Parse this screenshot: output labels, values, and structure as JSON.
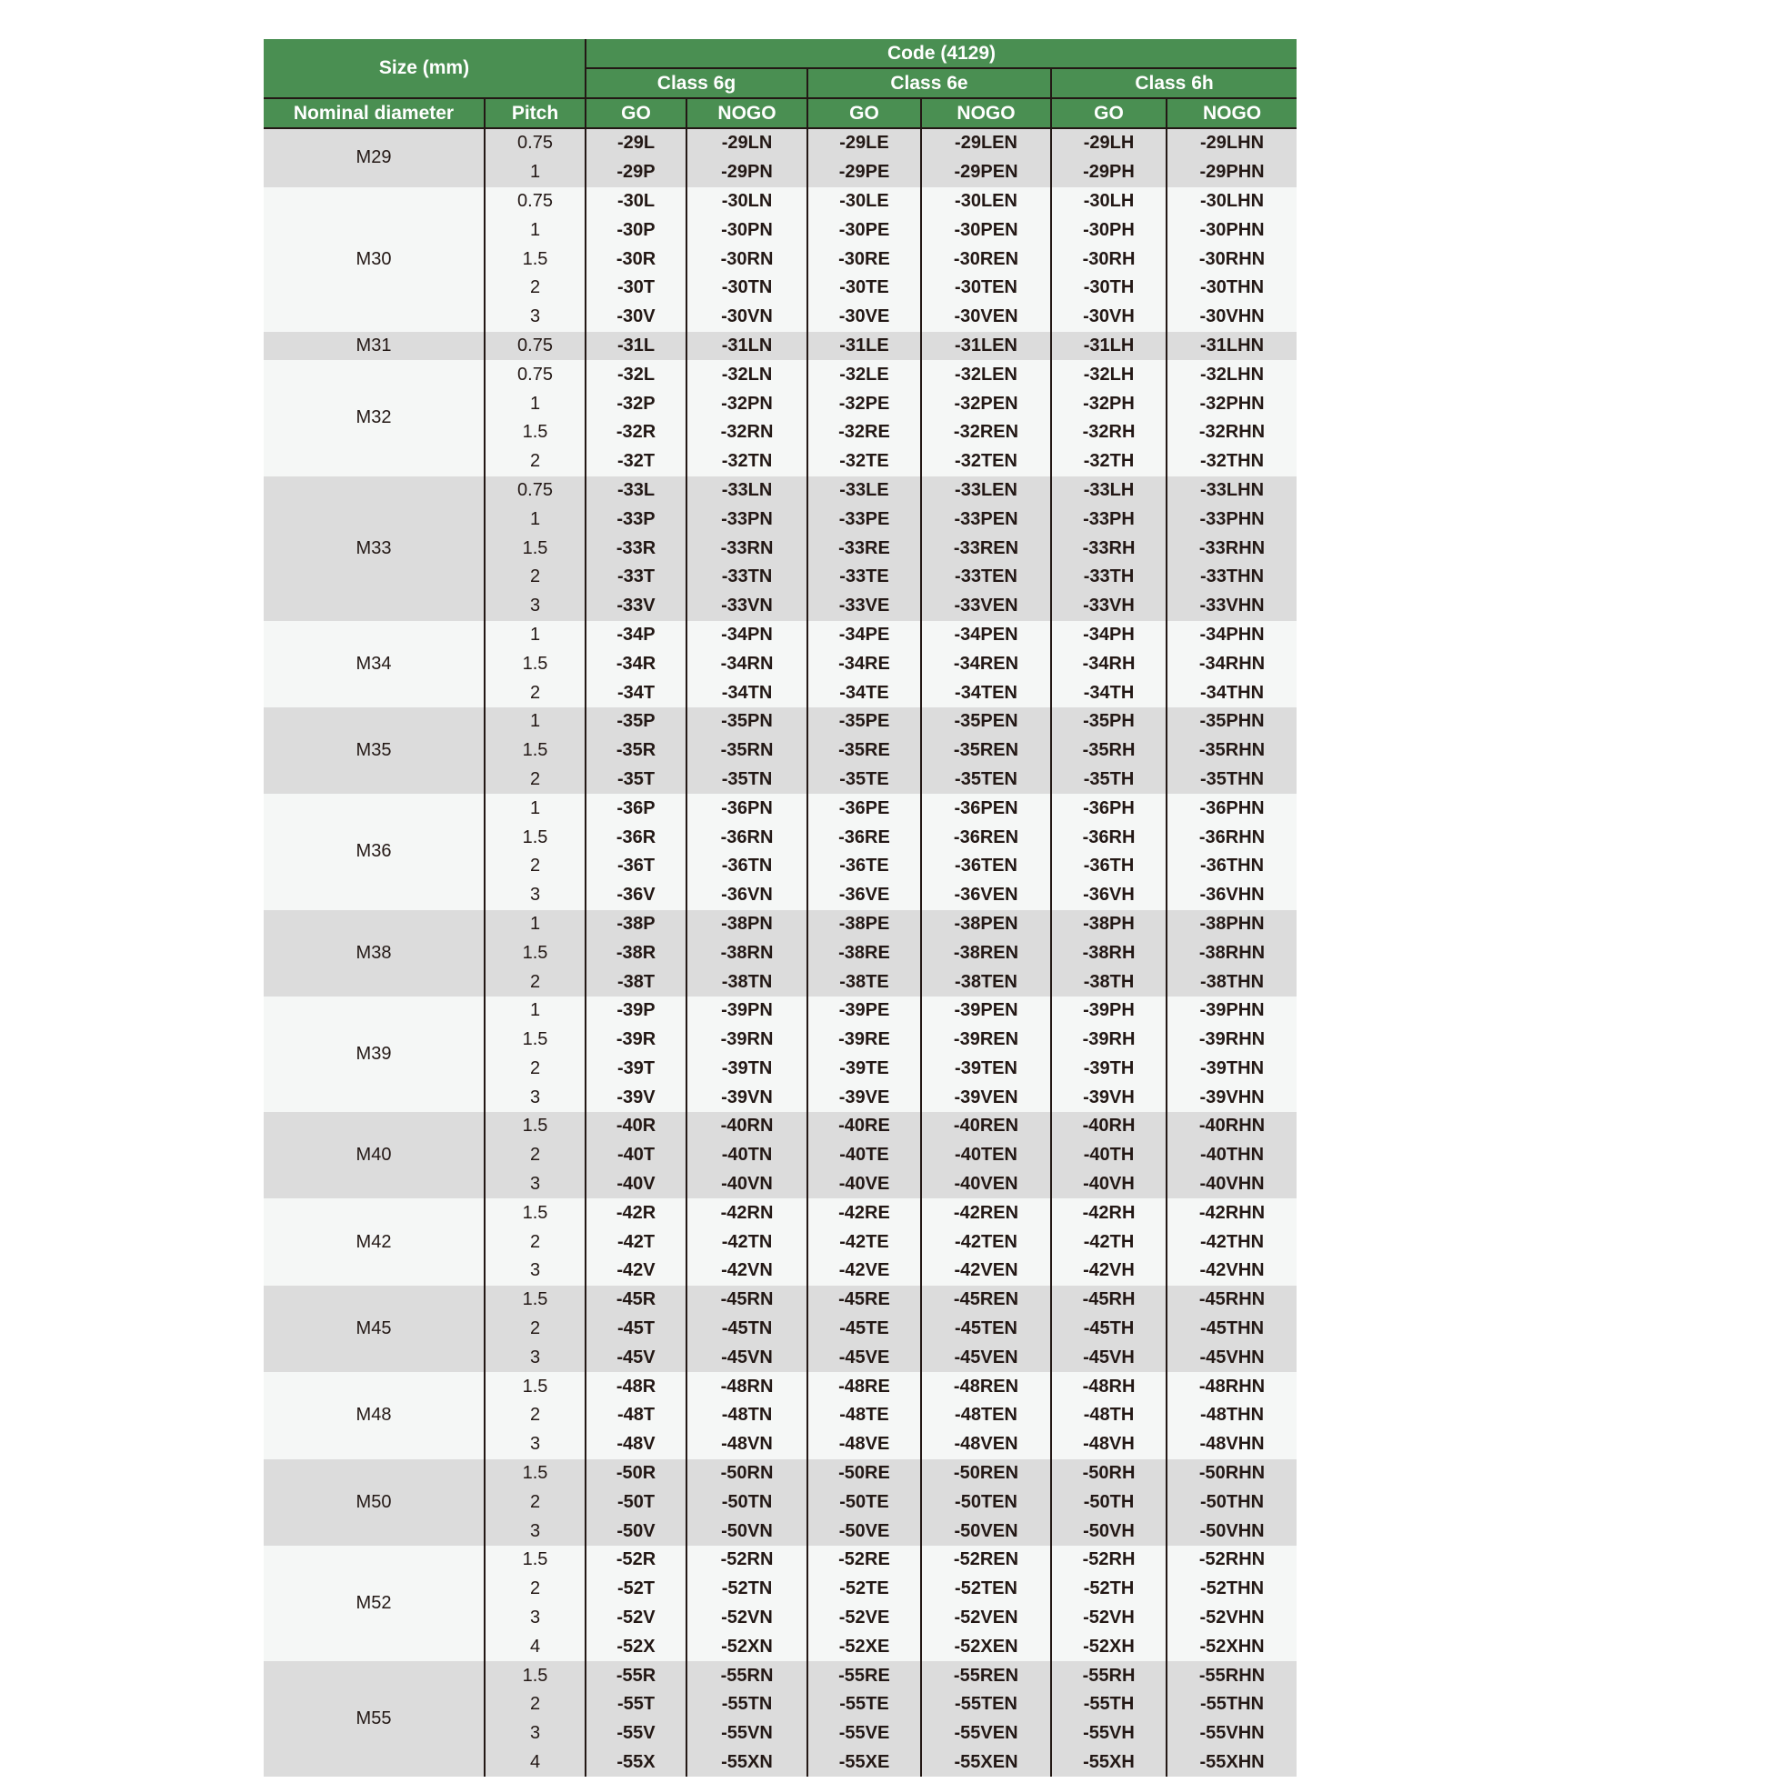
{
  "header": {
    "size": "Size (mm)",
    "code": "Code (4129)",
    "classes": [
      "Class 6g",
      "Class 6e",
      "Class 6h"
    ],
    "nominal_diameter": "Nominal diameter",
    "pitch": "Pitch",
    "go": "GO",
    "nogo": "NOGO"
  },
  "colors": {
    "header_bg": "#4a8f52",
    "row_gray": "#dcdcdc",
    "row_light": "#f5f7f6"
  },
  "groups": [
    {
      "diameter": "M29",
      "rows": [
        {
          "pitch": "0.75",
          "codes": [
            "-29L",
            "-29LN",
            "-29LE",
            "-29LEN",
            "-29LH",
            "-29LHN"
          ]
        },
        {
          "pitch": "1",
          "codes": [
            "-29P",
            "-29PN",
            "-29PE",
            "-29PEN",
            "-29PH",
            "-29PHN"
          ]
        }
      ]
    },
    {
      "diameter": "M30",
      "rows": [
        {
          "pitch": "0.75",
          "codes": [
            "-30L",
            "-30LN",
            "-30LE",
            "-30LEN",
            "-30LH",
            "-30LHN"
          ]
        },
        {
          "pitch": "1",
          "codes": [
            "-30P",
            "-30PN",
            "-30PE",
            "-30PEN",
            "-30PH",
            "-30PHN"
          ]
        },
        {
          "pitch": "1.5",
          "codes": [
            "-30R",
            "-30RN",
            "-30RE",
            "-30REN",
            "-30RH",
            "-30RHN"
          ]
        },
        {
          "pitch": "2",
          "codes": [
            "-30T",
            "-30TN",
            "-30TE",
            "-30TEN",
            "-30TH",
            "-30THN"
          ]
        },
        {
          "pitch": "3",
          "codes": [
            "-30V",
            "-30VN",
            "-30VE",
            "-30VEN",
            "-30VH",
            "-30VHN"
          ]
        }
      ]
    },
    {
      "diameter": "M31",
      "rows": [
        {
          "pitch": "0.75",
          "codes": [
            "-31L",
            "-31LN",
            "-31LE",
            "-31LEN",
            "-31LH",
            "-31LHN"
          ]
        }
      ]
    },
    {
      "diameter": "M32",
      "rows": [
        {
          "pitch": "0.75",
          "codes": [
            "-32L",
            "-32LN",
            "-32LE",
            "-32LEN",
            "-32LH",
            "-32LHN"
          ]
        },
        {
          "pitch": "1",
          "codes": [
            "-32P",
            "-32PN",
            "-32PE",
            "-32PEN",
            "-32PH",
            "-32PHN"
          ]
        },
        {
          "pitch": "1.5",
          "codes": [
            "-32R",
            "-32RN",
            "-32RE",
            "-32REN",
            "-32RH",
            "-32RHN"
          ]
        },
        {
          "pitch": "2",
          "codes": [
            "-32T",
            "-32TN",
            "-32TE",
            "-32TEN",
            "-32TH",
            "-32THN"
          ]
        }
      ]
    },
    {
      "diameter": "M33",
      "rows": [
        {
          "pitch": "0.75",
          "codes": [
            "-33L",
            "-33LN",
            "-33LE",
            "-33LEN",
            "-33LH",
            "-33LHN"
          ]
        },
        {
          "pitch": "1",
          "codes": [
            "-33P",
            "-33PN",
            "-33PE",
            "-33PEN",
            "-33PH",
            "-33PHN"
          ]
        },
        {
          "pitch": "1.5",
          "codes": [
            "-33R",
            "-33RN",
            "-33RE",
            "-33REN",
            "-33RH",
            "-33RHN"
          ]
        },
        {
          "pitch": "2",
          "codes": [
            "-33T",
            "-33TN",
            "-33TE",
            "-33TEN",
            "-33TH",
            "-33THN"
          ]
        },
        {
          "pitch": "3",
          "codes": [
            "-33V",
            "-33VN",
            "-33VE",
            "-33VEN",
            "-33VH",
            "-33VHN"
          ]
        }
      ]
    },
    {
      "diameter": "M34",
      "rows": [
        {
          "pitch": "1",
          "codes": [
            "-34P",
            "-34PN",
            "-34PE",
            "-34PEN",
            "-34PH",
            "-34PHN"
          ]
        },
        {
          "pitch": "1.5",
          "codes": [
            "-34R",
            "-34RN",
            "-34RE",
            "-34REN",
            "-34RH",
            "-34RHN"
          ]
        },
        {
          "pitch": "2",
          "codes": [
            "-34T",
            "-34TN",
            "-34TE",
            "-34TEN",
            "-34TH",
            "-34THN"
          ]
        }
      ]
    },
    {
      "diameter": "M35",
      "rows": [
        {
          "pitch": "1",
          "codes": [
            "-35P",
            "-35PN",
            "-35PE",
            "-35PEN",
            "-35PH",
            "-35PHN"
          ]
        },
        {
          "pitch": "1.5",
          "codes": [
            "-35R",
            "-35RN",
            "-35RE",
            "-35REN",
            "-35RH",
            "-35RHN"
          ]
        },
        {
          "pitch": "2",
          "codes": [
            "-35T",
            "-35TN",
            "-35TE",
            "-35TEN",
            "-35TH",
            "-35THN"
          ]
        }
      ]
    },
    {
      "diameter": "M36",
      "rows": [
        {
          "pitch": "1",
          "codes": [
            "-36P",
            "-36PN",
            "-36PE",
            "-36PEN",
            "-36PH",
            "-36PHN"
          ]
        },
        {
          "pitch": "1.5",
          "codes": [
            "-36R",
            "-36RN",
            "-36RE",
            "-36REN",
            "-36RH",
            "-36RHN"
          ]
        },
        {
          "pitch": "2",
          "codes": [
            "-36T",
            "-36TN",
            "-36TE",
            "-36TEN",
            "-36TH",
            "-36THN"
          ]
        },
        {
          "pitch": "3",
          "codes": [
            "-36V",
            "-36VN",
            "-36VE",
            "-36VEN",
            "-36VH",
            "-36VHN"
          ]
        }
      ]
    },
    {
      "diameter": "M38",
      "rows": [
        {
          "pitch": "1",
          "codes": [
            "-38P",
            "-38PN",
            "-38PE",
            "-38PEN",
            "-38PH",
            "-38PHN"
          ]
        },
        {
          "pitch": "1.5",
          "codes": [
            "-38R",
            "-38RN",
            "-38RE",
            "-38REN",
            "-38RH",
            "-38RHN"
          ]
        },
        {
          "pitch": "2",
          "codes": [
            "-38T",
            "-38TN",
            "-38TE",
            "-38TEN",
            "-38TH",
            "-38THN"
          ]
        }
      ]
    },
    {
      "diameter": "M39",
      "rows": [
        {
          "pitch": "1",
          "codes": [
            "-39P",
            "-39PN",
            "-39PE",
            "-39PEN",
            "-39PH",
            "-39PHN"
          ]
        },
        {
          "pitch": "1.5",
          "codes": [
            "-39R",
            "-39RN",
            "-39RE",
            "-39REN",
            "-39RH",
            "-39RHN"
          ]
        },
        {
          "pitch": "2",
          "codes": [
            "-39T",
            "-39TN",
            "-39TE",
            "-39TEN",
            "-39TH",
            "-39THN"
          ]
        },
        {
          "pitch": "3",
          "codes": [
            "-39V",
            "-39VN",
            "-39VE",
            "-39VEN",
            "-39VH",
            "-39VHN"
          ]
        }
      ]
    },
    {
      "diameter": "M40",
      "rows": [
        {
          "pitch": "1.5",
          "codes": [
            "-40R",
            "-40RN",
            "-40RE",
            "-40REN",
            "-40RH",
            "-40RHN"
          ]
        },
        {
          "pitch": "2",
          "codes": [
            "-40T",
            "-40TN",
            "-40TE",
            "-40TEN",
            "-40TH",
            "-40THN"
          ]
        },
        {
          "pitch": "3",
          "codes": [
            "-40V",
            "-40VN",
            "-40VE",
            "-40VEN",
            "-40VH",
            "-40VHN"
          ]
        }
      ]
    },
    {
      "diameter": "M42",
      "rows": [
        {
          "pitch": "1.5",
          "codes": [
            "-42R",
            "-42RN",
            "-42RE",
            "-42REN",
            "-42RH",
            "-42RHN"
          ]
        },
        {
          "pitch": "2",
          "codes": [
            "-42T",
            "-42TN",
            "-42TE",
            "-42TEN",
            "-42TH",
            "-42THN"
          ]
        },
        {
          "pitch": "3",
          "codes": [
            "-42V",
            "-42VN",
            "-42VE",
            "-42VEN",
            "-42VH",
            "-42VHN"
          ]
        }
      ]
    },
    {
      "diameter": "M45",
      "rows": [
        {
          "pitch": "1.5",
          "codes": [
            "-45R",
            "-45RN",
            "-45RE",
            "-45REN",
            "-45RH",
            "-45RHN"
          ]
        },
        {
          "pitch": "2",
          "codes": [
            "-45T",
            "-45TN",
            "-45TE",
            "-45TEN",
            "-45TH",
            "-45THN"
          ]
        },
        {
          "pitch": "3",
          "codes": [
            "-45V",
            "-45VN",
            "-45VE",
            "-45VEN",
            "-45VH",
            "-45VHN"
          ]
        }
      ]
    },
    {
      "diameter": "M48",
      "rows": [
        {
          "pitch": "1.5",
          "codes": [
            "-48R",
            "-48RN",
            "-48RE",
            "-48REN",
            "-48RH",
            "-48RHN"
          ]
        },
        {
          "pitch": "2",
          "codes": [
            "-48T",
            "-48TN",
            "-48TE",
            "-48TEN",
            "-48TH",
            "-48THN"
          ]
        },
        {
          "pitch": "3",
          "codes": [
            "-48V",
            "-48VN",
            "-48VE",
            "-48VEN",
            "-48VH",
            "-48VHN"
          ]
        }
      ]
    },
    {
      "diameter": "M50",
      "rows": [
        {
          "pitch": "1.5",
          "codes": [
            "-50R",
            "-50RN",
            "-50RE",
            "-50REN",
            "-50RH",
            "-50RHN"
          ]
        },
        {
          "pitch": "2",
          "codes": [
            "-50T",
            "-50TN",
            "-50TE",
            "-50TEN",
            "-50TH",
            "-50THN"
          ]
        },
        {
          "pitch": "3",
          "codes": [
            "-50V",
            "-50VN",
            "-50VE",
            "-50VEN",
            "-50VH",
            "-50VHN"
          ]
        }
      ]
    },
    {
      "diameter": "M52",
      "rows": [
        {
          "pitch": "1.5",
          "codes": [
            "-52R",
            "-52RN",
            "-52RE",
            "-52REN",
            "-52RH",
            "-52RHN"
          ]
        },
        {
          "pitch": "2",
          "codes": [
            "-52T",
            "-52TN",
            "-52TE",
            "-52TEN",
            "-52TH",
            "-52THN"
          ]
        },
        {
          "pitch": "3",
          "codes": [
            "-52V",
            "-52VN",
            "-52VE",
            "-52VEN",
            "-52VH",
            "-52VHN"
          ]
        },
        {
          "pitch": "4",
          "codes": [
            "-52X",
            "-52XN",
            "-52XE",
            "-52XEN",
            "-52XH",
            "-52XHN"
          ]
        }
      ]
    },
    {
      "diameter": "M55",
      "rows": [
        {
          "pitch": "1.5",
          "codes": [
            "-55R",
            "-55RN",
            "-55RE",
            "-55REN",
            "-55RH",
            "-55RHN"
          ]
        },
        {
          "pitch": "2",
          "codes": [
            "-55T",
            "-55TN",
            "-55TE",
            "-55TEN",
            "-55TH",
            "-55THN"
          ]
        },
        {
          "pitch": "3",
          "codes": [
            "-55V",
            "-55VN",
            "-55VE",
            "-55VEN",
            "-55VH",
            "-55VHN"
          ]
        },
        {
          "pitch": "4",
          "codes": [
            "-55X",
            "-55XN",
            "-55XE",
            "-55XEN",
            "-55XH",
            "-55XHN"
          ]
        }
      ]
    }
  ]
}
